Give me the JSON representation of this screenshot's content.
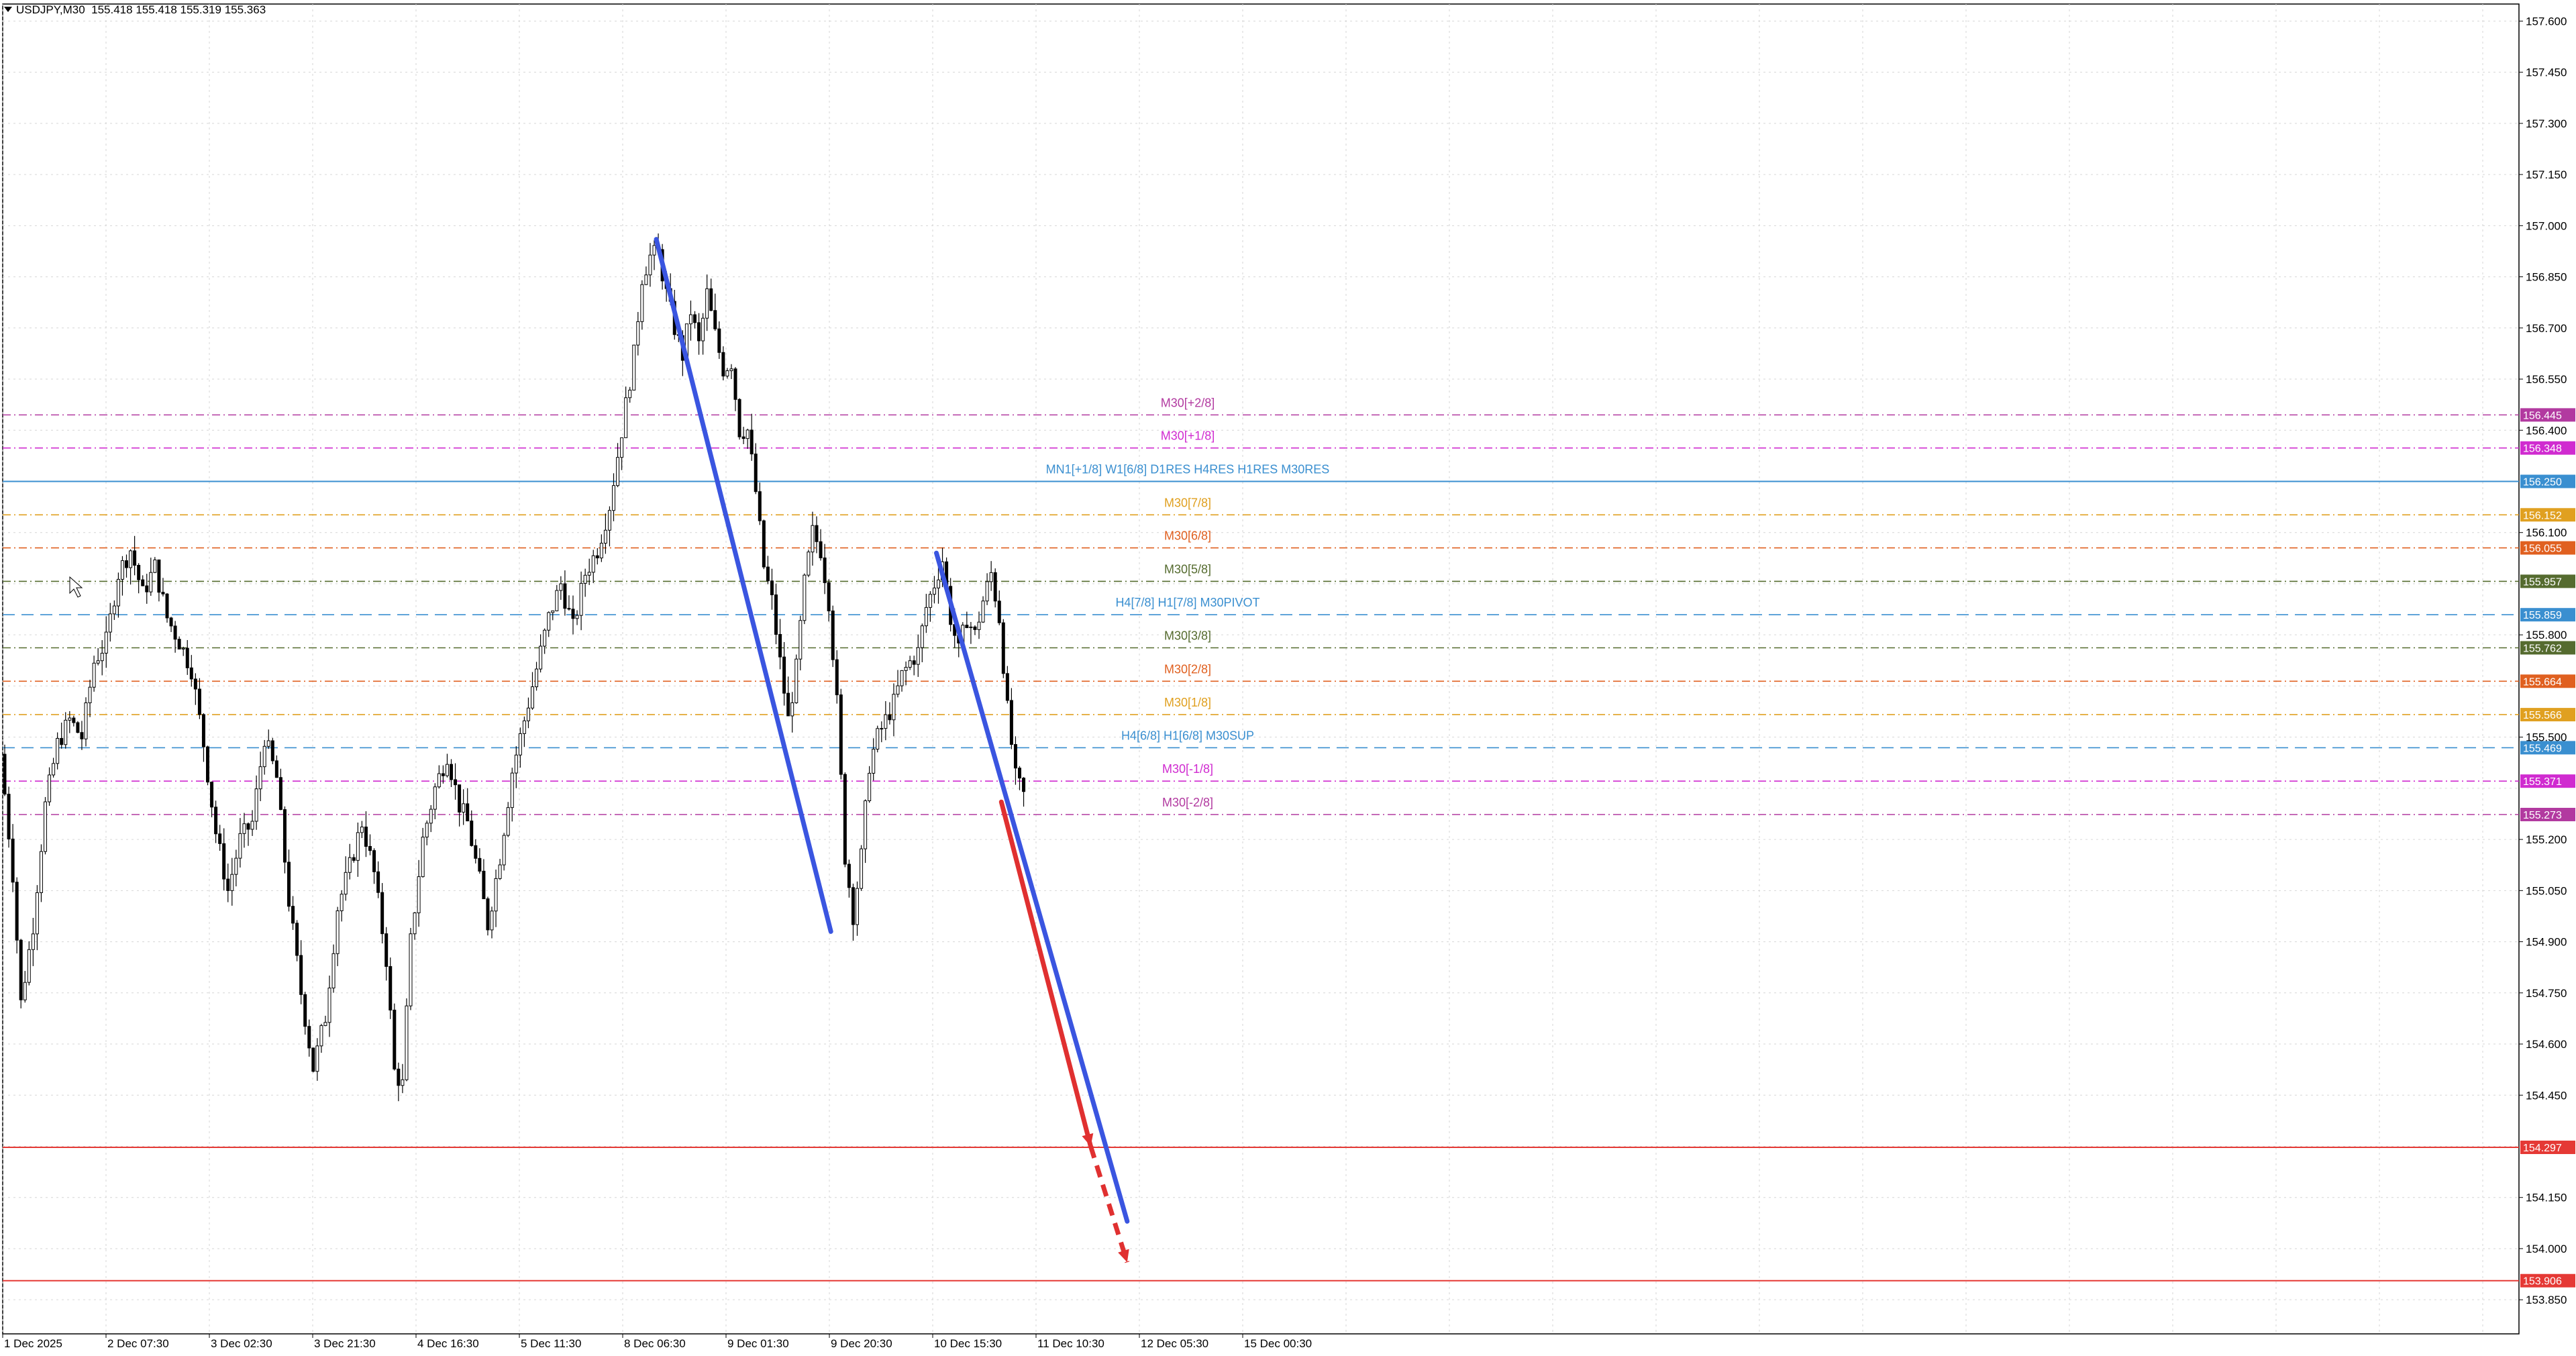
{
  "header": {
    "symbol": "USDJPY,M30",
    "open": "155.418",
    "high": "155.418",
    "low": "155.319",
    "close": "155.363"
  },
  "colors": {
    "background": "#ffffff",
    "grid": "#d6d6d6",
    "candle": "#000000",
    "trend_line": "#3a55e0",
    "projection": "#e03030",
    "level_blue": "#3a8fd0",
    "target_red": "#e53935"
  },
  "chart_data": {
    "type": "candlestick",
    "symbol": "USDJPY",
    "timeframe": "M30",
    "ylim": [
      153.75,
      157.65
    ],
    "y_ticks": [
      "157.600",
      "157.450",
      "157.300",
      "157.150",
      "157.000",
      "156.850",
      "156.700",
      "156.550",
      "156.400",
      "156.100",
      "155.800",
      "155.500",
      "155.200",
      "155.050",
      "154.900",
      "154.750",
      "154.600",
      "154.450",
      "154.150",
      "154.000",
      "153.850"
    ],
    "x_ticks": [
      "1 Dec 2025",
      "2 Dec 07:30",
      "3 Dec 02:30",
      "3 Dec 21:30",
      "4 Dec 16:30",
      "5 Dec 11:30",
      "8 Dec 06:30",
      "9 Dec 01:30",
      "9 Dec 20:30",
      "10 Dec 15:30",
      "11 Dec 10:30",
      "12 Dec 05:30",
      "15 Dec 00:30"
    ],
    "price_path": [
      [
        0,
        155.45
      ],
      [
        3,
        155.1
      ],
      [
        5,
        154.72
      ],
      [
        8,
        154.95
      ],
      [
        11,
        155.3
      ],
      [
        14,
        155.48
      ],
      [
        17,
        155.55
      ],
      [
        20,
        155.5
      ],
      [
        23,
        155.72
      ],
      [
        26,
        155.78
      ],
      [
        29,
        155.98
      ],
      [
        32,
        156.05
      ],
      [
        35,
        155.92
      ],
      [
        38,
        156.0
      ],
      [
        41,
        155.85
      ],
      [
        44,
        155.78
      ],
      [
        47,
        155.7
      ],
      [
        50,
        155.48
      ],
      [
        53,
        155.22
      ],
      [
        56,
        155.05
      ],
      [
        59,
        155.2
      ],
      [
        62,
        155.25
      ],
      [
        65,
        155.5
      ],
      [
        68,
        155.38
      ],
      [
        71,
        155.02
      ],
      [
        74,
        154.75
      ],
      [
        77,
        154.53
      ],
      [
        80,
        154.68
      ],
      [
        83,
        155.0
      ],
      [
        86,
        155.12
      ],
      [
        89,
        155.25
      ],
      [
        92,
        155.1
      ],
      [
        95,
        154.85
      ],
      [
        97,
        154.52
      ],
      [
        99,
        154.48
      ],
      [
        101,
        154.9
      ],
      [
        104,
        155.2
      ],
      [
        107,
        155.35
      ],
      [
        110,
        155.45
      ],
      [
        113,
        155.3
      ],
      [
        115,
        155.25
      ],
      [
        118,
        155.08
      ],
      [
        120,
        154.95
      ],
      [
        123,
        155.15
      ],
      [
        126,
        155.4
      ],
      [
        129,
        155.55
      ],
      [
        132,
        155.7
      ],
      [
        135,
        155.85
      ],
      [
        138,
        155.95
      ],
      [
        141,
        155.82
      ],
      [
        144,
        155.98
      ],
      [
        147,
        156.05
      ],
      [
        150,
        156.18
      ],
      [
        153,
        156.4
      ],
      [
        156,
        156.62
      ],
      [
        158,
        156.85
      ],
      [
        160,
        156.91
      ],
      [
        162,
        156.92
      ],
      [
        164,
        156.8
      ],
      [
        166,
        156.7
      ],
      [
        168,
        156.62
      ],
      [
        170,
        156.75
      ],
      [
        172,
        156.65
      ],
      [
        174,
        156.8
      ],
      [
        176,
        156.68
      ],
      [
        178,
        156.58
      ],
      [
        180,
        156.6
      ],
      [
        182,
        156.4
      ],
      [
        184,
        156.4
      ],
      [
        186,
        156.22
      ],
      [
        188,
        156.0
      ],
      [
        190,
        155.9
      ],
      [
        192,
        155.72
      ],
      [
        194,
        155.55
      ],
      [
        196,
        155.7
      ],
      [
        198,
        155.95
      ],
      [
        200,
        156.1
      ],
      [
        202,
        156.05
      ],
      [
        204,
        155.9
      ],
      [
        206,
        155.6
      ],
      [
        208,
        155.15
      ],
      [
        210,
        154.98
      ],
      [
        212,
        155.15
      ],
      [
        214,
        155.42
      ],
      [
        216,
        155.5
      ],
      [
        218,
        155.55
      ],
      [
        220,
        155.6
      ],
      [
        222,
        155.68
      ],
      [
        224,
        155.72
      ],
      [
        226,
        155.75
      ],
      [
        228,
        155.88
      ],
      [
        230,
        155.95
      ],
      [
        232,
        156.02
      ],
      [
        234,
        155.85
      ],
      [
        236,
        155.75
      ],
      [
        238,
        155.85
      ],
      [
        240,
        155.8
      ],
      [
        242,
        155.9
      ],
      [
        244,
        155.98
      ],
      [
        246,
        155.85
      ],
      [
        248,
        155.58
      ],
      [
        250,
        155.38
      ],
      [
        252,
        155.33
      ]
    ],
    "horizontal_levels": [
      {
        "label": "M30[+2/8]",
        "price": "156.445",
        "color": "#b23aa0",
        "style": "dash-dot"
      },
      {
        "label": "M30[+1/8]",
        "price": "156.348",
        "color": "#d02bd0",
        "style": "dash-dot"
      },
      {
        "label": "MN1[+1/8] W1[6/8] D1RES H4RES H1RES M30RES",
        "price": "156.250",
        "color": "#3a8fd0",
        "style": "solid"
      },
      {
        "label": "M30[7/8]",
        "price": "156.152",
        "color": "#e0a020",
        "style": "dash-dot"
      },
      {
        "label": "M30[6/8]",
        "price": "156.055",
        "color": "#e06020",
        "style": "dash-dot"
      },
      {
        "label": "M30[5/8]",
        "price": "155.957",
        "color": "#556b2f",
        "style": "dash-dot"
      },
      {
        "label": "H4[7/8] H1[7/8] M30PIVOT",
        "price": "155.859",
        "color": "#3a8fd0",
        "style": "dash"
      },
      {
        "label": "M30[3/8]",
        "price": "155.762",
        "color": "#556b2f",
        "style": "dash-dot"
      },
      {
        "label": "M30[2/8]",
        "price": "155.664",
        "color": "#e06020",
        "style": "dash-dot"
      },
      {
        "label": "M30[1/8]",
        "price": "155.566",
        "color": "#e0a020",
        "style": "dash-dot"
      },
      {
        "label": "H4[6/8] H1[6/8] M30SUP",
        "price": "155.469",
        "color": "#3a8fd0",
        "style": "dash"
      },
      {
        "label": "M30[-1/8]",
        "price": "155.371",
        "color": "#d02bd0",
        "style": "dash-dot"
      },
      {
        "label": "M30[-2/8]",
        "price": "155.273",
        "color": "#b23aa0",
        "style": "dash-dot"
      },
      {
        "label": "",
        "price": "154.297",
        "color": "#e53935",
        "style": "solid"
      },
      {
        "label": "",
        "price": "153.906",
        "color": "#e53935",
        "style": "solid"
      }
    ],
    "trend_lines": [
      {
        "name": "",
        "from": [
          161,
          156.96
        ],
        "to": [
          204,
          154.93
        ],
        "color": "#3a55e0"
      },
      {
        "name": "",
        "from": [
          230,
          156.04
        ],
        "to": [
          277,
          154.08
        ],
        "color": "#3a55e0"
      }
    ],
    "projection": {
      "solid_from": [
        246,
        155.31
      ],
      "solid_to": [
        268,
        154.3
      ],
      "dashed_from": [
        268,
        154.3
      ],
      "dashed_to": [
        277,
        153.96
      ],
      "color": "#e03030"
    }
  }
}
